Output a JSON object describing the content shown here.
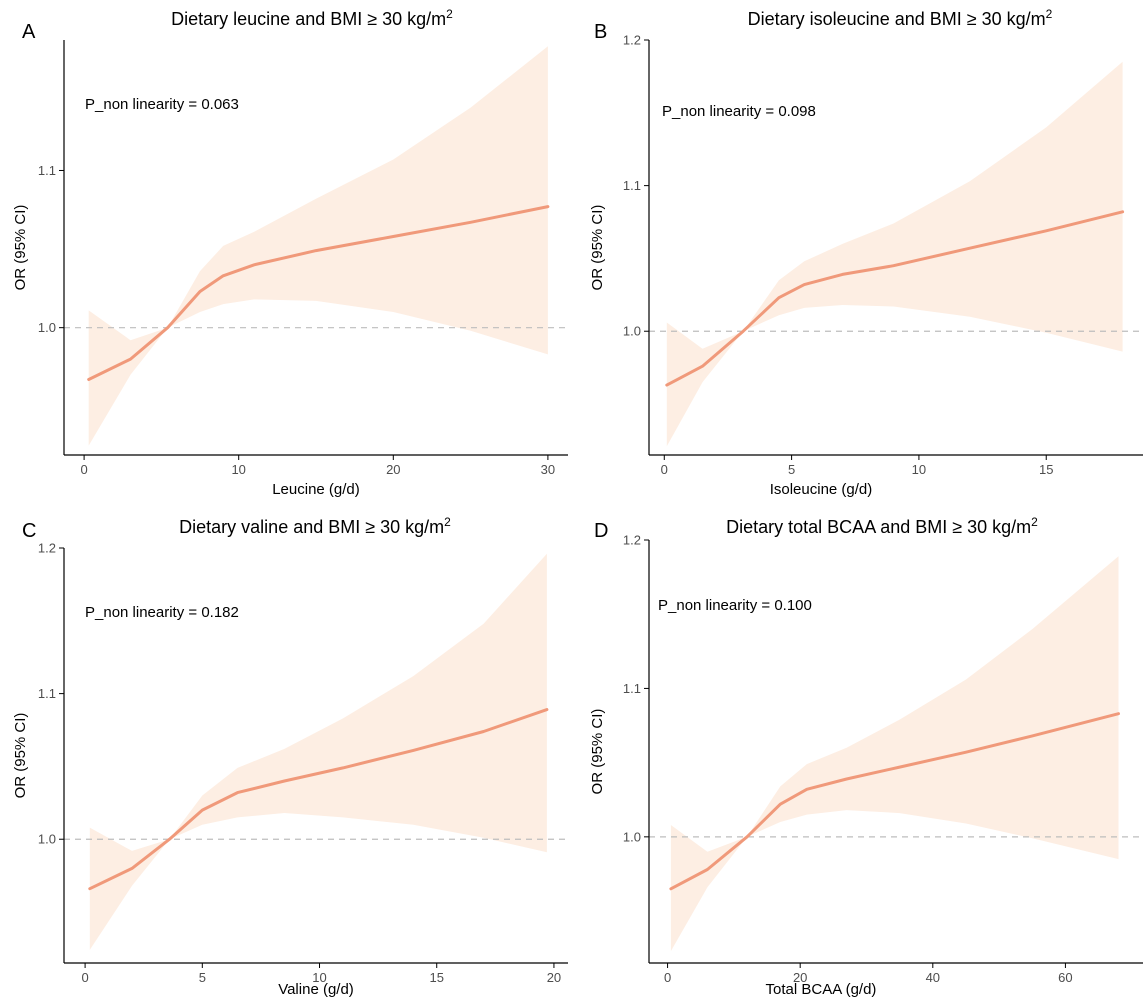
{
  "figure": {
    "panels": [
      {
        "letter": "A",
        "title": "Dietary leucine and BMI ≥ 30 kg/m",
        "title_sup": "2",
        "xlabel": "Leucine (g/d)",
        "ylabel": "OR (95% CI)",
        "annotation": "P_non linearity = 0.063"
      },
      {
        "letter": "B",
        "title": "Dietary isoleucine and BMI ≥ 30 kg/m",
        "title_sup": "2",
        "xlabel": "Isoleucine (g/d)",
        "ylabel": "OR (95% CI)",
        "annotation": "P_non linearity = 0.098"
      },
      {
        "letter": "C",
        "title": "Dietary valine and BMI ≥ 30 kg/m",
        "title_sup": "2",
        "xlabel": "Valine (g/d)",
        "ylabel": "OR (95% CI)",
        "annotation": "P_non linearity = 0.182"
      },
      {
        "letter": "D",
        "title": "Dietary total BCAA and BMI ≥ 30 kg/m",
        "title_sup": "2",
        "xlabel": "Total BCAA (g/d)",
        "ylabel": "OR (95% CI)",
        "annotation": "P_non linearity = 0.100"
      }
    ]
  },
  "colors": {
    "line": "#f0997a",
    "ribbon": "#fdeee3",
    "reference_line": "#bdbdbd",
    "axis": "#000000",
    "tick_label": "#4d4d4d"
  },
  "chart_data": [
    {
      "type": "line",
      "title": "Dietary leucine and BMI ≥ 30 kg/m²",
      "xlabel": "Leucine (g/d)",
      "ylabel": "OR (95% CI)",
      "xlim": [
        -1.3,
        31.3
      ],
      "ylim": [
        0.919,
        1.183
      ],
      "xticks": [
        0,
        10,
        20,
        30
      ],
      "yticks": [
        1.0,
        1.1
      ],
      "reference_y": 1.0,
      "grid": false,
      "x": [
        0.3,
        3.0,
        5.4,
        7.5,
        9.0,
        11.0,
        15.0,
        20.0,
        25.0,
        30.0
      ],
      "y": [
        0.967,
        0.98,
        1.0,
        1.023,
        1.033,
        1.04,
        1.049,
        1.058,
        1.067,
        1.077
      ],
      "lower": [
        0.925,
        0.97,
        1.0,
        1.01,
        1.015,
        1.018,
        1.017,
        1.01,
        0.998,
        0.983
      ],
      "upper": [
        1.011,
        0.992,
        1.0,
        1.036,
        1.052,
        1.061,
        1.082,
        1.107,
        1.14,
        1.179
      ]
    },
    {
      "type": "line",
      "title": "Dietary isoleucine and BMI ≥ 30 kg/m²",
      "xlabel": "Isoleucine (g/d)",
      "ylabel": "OR (95% CI)",
      "xlim": [
        -0.6,
        18.8
      ],
      "ylim": [
        0.915,
        1.2
      ],
      "xticks": [
        0,
        5,
        10,
        15
      ],
      "yticks": [
        1.0,
        1.1,
        1.2
      ],
      "reference_y": 1.0,
      "grid": false,
      "x": [
        0.1,
        1.5,
        3.1,
        4.5,
        5.5,
        7.0,
        9.0,
        12.0,
        15.0,
        18.0
      ],
      "y": [
        0.963,
        0.976,
        1.0,
        1.023,
        1.032,
        1.039,
        1.045,
        1.057,
        1.069,
        1.082
      ],
      "lower": [
        0.921,
        0.965,
        1.0,
        1.011,
        1.016,
        1.018,
        1.017,
        1.01,
        0.999,
        0.986
      ],
      "upper": [
        1.006,
        0.988,
        1.0,
        1.035,
        1.048,
        1.06,
        1.074,
        1.103,
        1.14,
        1.185
      ]
    },
    {
      "type": "line",
      "title": "Dietary valine and BMI ≥ 30 kg/m²",
      "xlabel": "Valine (g/d)",
      "ylabel": "OR (95% CI)",
      "xlim": [
        -0.9,
        20.6
      ],
      "ylim": [
        0.915,
        1.2
      ],
      "xticks": [
        0,
        5,
        10,
        15,
        20
      ],
      "yticks": [
        1.0,
        1.1,
        1.2
      ],
      "reference_y": 1.0,
      "grid": false,
      "x": [
        0.2,
        2.0,
        3.6,
        5.0,
        6.5,
        8.5,
        11.0,
        14.0,
        17.0,
        19.7
      ],
      "y": [
        0.966,
        0.98,
        1.0,
        1.02,
        1.032,
        1.04,
        1.049,
        1.061,
        1.074,
        1.089
      ],
      "lower": [
        0.924,
        0.968,
        1.0,
        1.01,
        1.015,
        1.018,
        1.015,
        1.01,
        1.001,
        0.991
      ],
      "upper": [
        1.008,
        0.992,
        1.0,
        1.03,
        1.049,
        1.062,
        1.083,
        1.112,
        1.148,
        1.196
      ]
    },
    {
      "type": "line",
      "title": "Dietary total BCAA and BMI ≥ 30 kg/m²",
      "xlabel": "Total BCAA (g/d)",
      "ylabel": "OR (95% CI)",
      "xlim": [
        -2.8,
        71.7
      ],
      "ylim": [
        0.915,
        1.2
      ],
      "xticks": [
        0,
        20,
        40,
        60
      ],
      "yticks": [
        1.0,
        1.1,
        1.2
      ],
      "reference_y": 1.0,
      "grid": false,
      "x": [
        0.5,
        6.0,
        12.0,
        17.0,
        21.0,
        27.0,
        35.0,
        45.0,
        55.0,
        68.0
      ],
      "y": [
        0.965,
        0.978,
        1.0,
        1.022,
        1.032,
        1.039,
        1.047,
        1.057,
        1.068,
        1.083
      ],
      "lower": [
        0.923,
        0.966,
        1.0,
        1.01,
        1.015,
        1.018,
        1.016,
        1.009,
        0.999,
        0.985
      ],
      "upper": [
        1.008,
        0.99,
        1.0,
        1.034,
        1.049,
        1.06,
        1.079,
        1.106,
        1.14,
        1.189
      ]
    }
  ]
}
